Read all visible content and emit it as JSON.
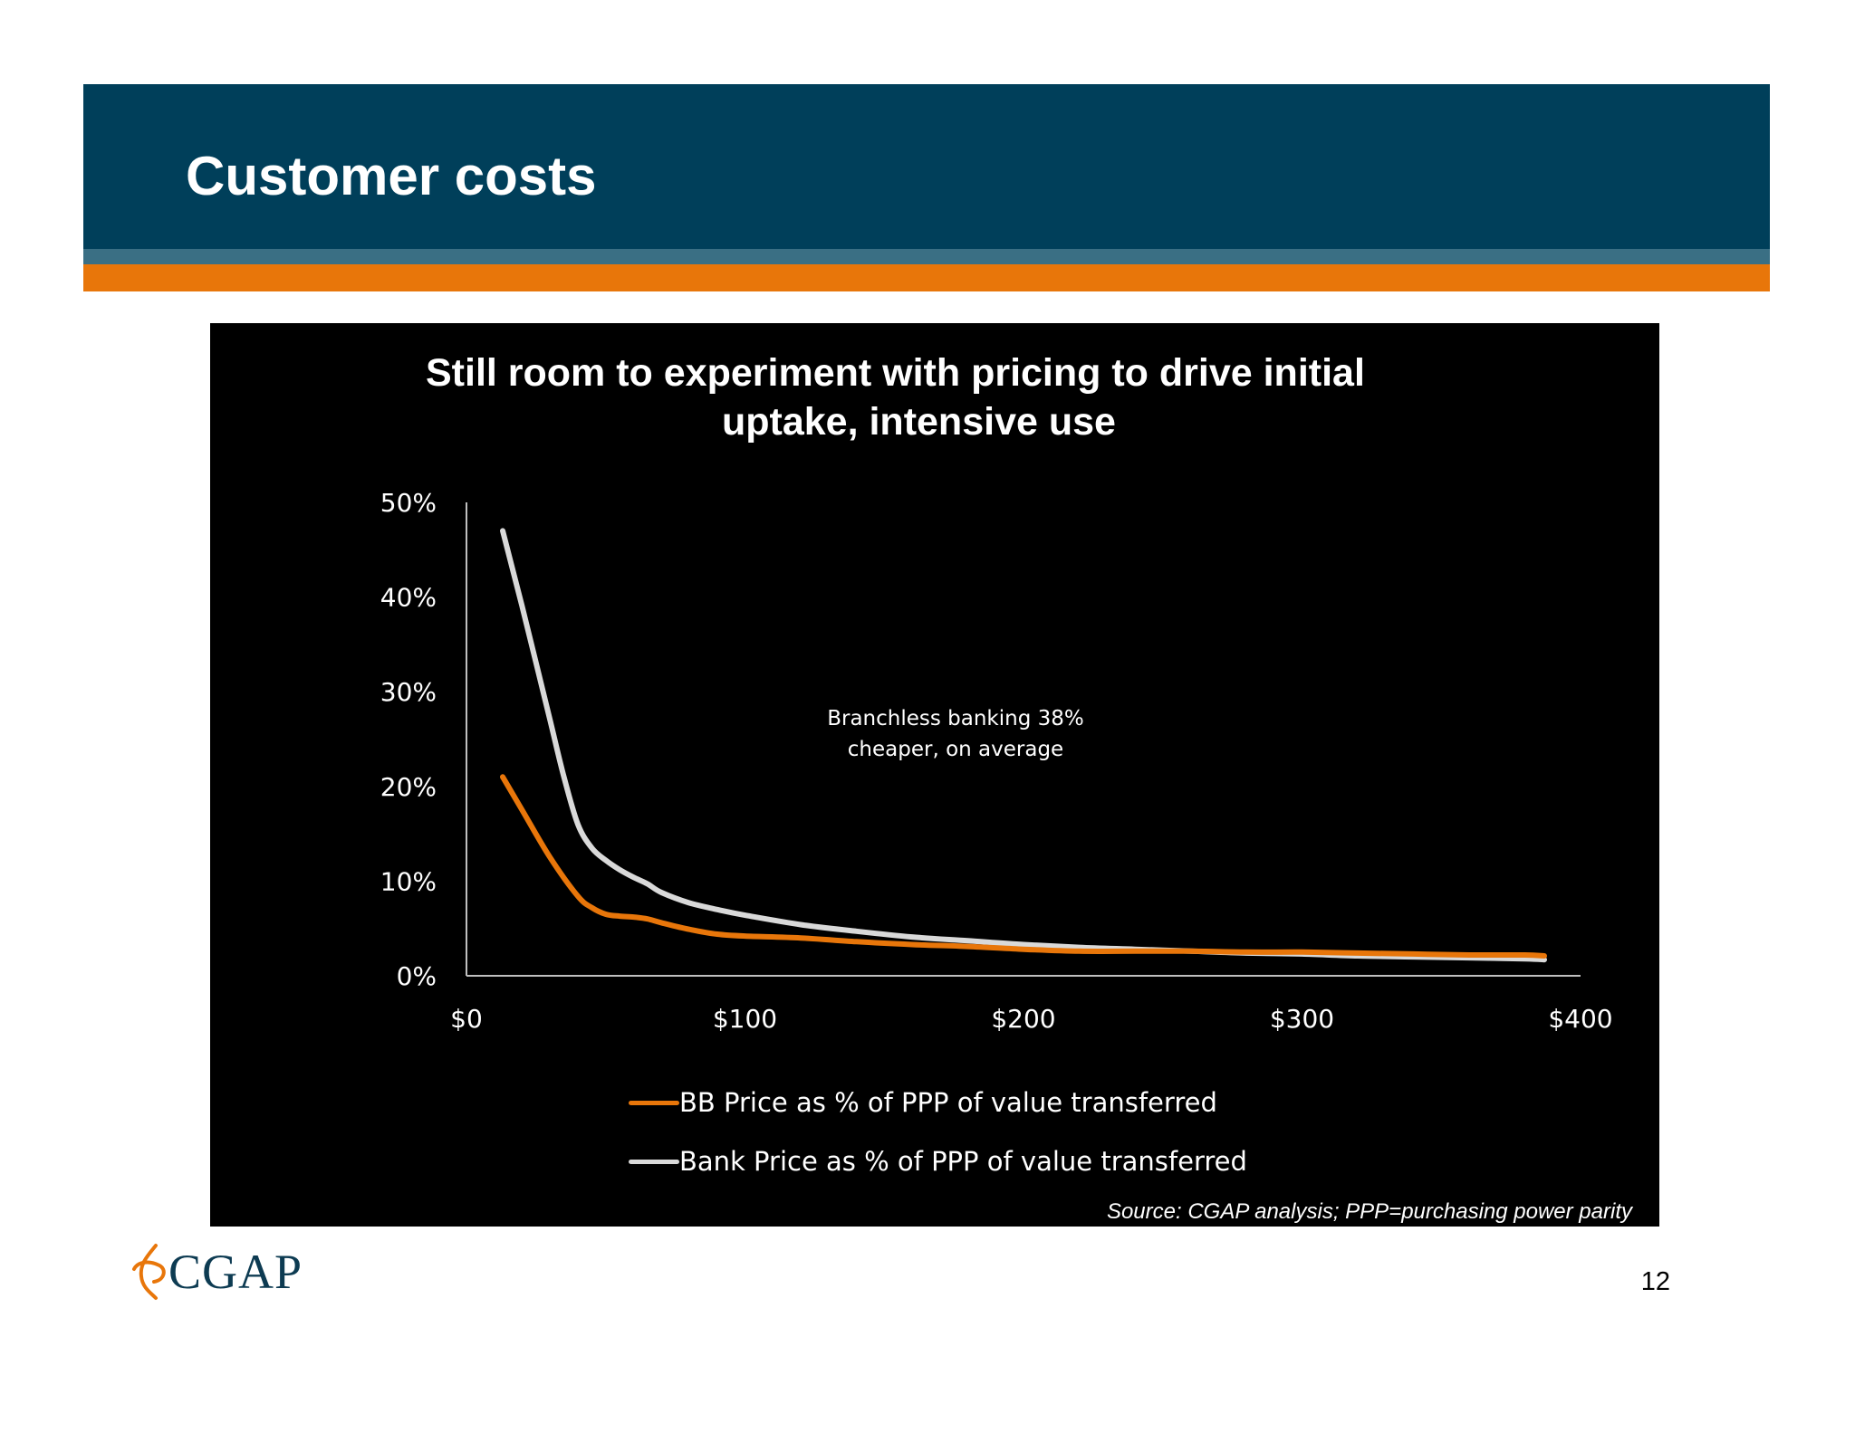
{
  "slide": {
    "title": "Customer costs",
    "page_number": "12",
    "logo_text": "CGAP",
    "source": "Source: CGAP analysis; PPP=purchasing power parity"
  },
  "colors": {
    "header_band": "#003f5a",
    "header_stripe": "#3a6f84",
    "header_orange": "#e8760a",
    "chart_background": "#000000",
    "bb_series": "#e8760a",
    "bank_series": "#d9d9d9"
  },
  "chart_data": {
    "type": "line",
    "title_lines": [
      "Still room to experiment with pricing to drive initial",
      "uptake, intensive use"
    ],
    "annotation_lines": [
      "Branchless banking 38%",
      "cheaper, on average"
    ],
    "xlim": [
      0,
      400
    ],
    "ylim": [
      0,
      50
    ],
    "x_ticks": [
      0,
      100,
      200,
      300,
      400
    ],
    "x_tick_labels": [
      "$0",
      "$100",
      "$200",
      "$300",
      "$400"
    ],
    "y_ticks": [
      0,
      10,
      20,
      30,
      40,
      50
    ],
    "y_tick_labels": [
      "0%",
      "10%",
      "20%",
      "30%",
      "40%",
      "50%"
    ],
    "grid": false,
    "legend_position": "bottom",
    "series": [
      {
        "name": "BB Price as % of PPP of value transferred",
        "color_key": "bb_series",
        "x": [
          13,
          20,
          30,
          40,
          45,
          50,
          55,
          60,
          65,
          70,
          80,
          90,
          100,
          120,
          140,
          160,
          180,
          200,
          220,
          240,
          260,
          280,
          300,
          320,
          340,
          360,
          380,
          387
        ],
        "y": [
          21,
          17.5,
          12.5,
          8.4,
          7.2,
          6.5,
          6.3,
          6.2,
          6.0,
          5.6,
          4.9,
          4.4,
          4.2,
          4.0,
          3.6,
          3.3,
          3.1,
          2.8,
          2.6,
          2.6,
          2.6,
          2.5,
          2.5,
          2.4,
          2.3,
          2.2,
          2.2,
          2.1
        ]
      },
      {
        "name": "Bank Price as % of PPP of value transferred",
        "color_key": "bank_series",
        "x": [
          13,
          20,
          30,
          35,
          40,
          45,
          50,
          55,
          60,
          65,
          70,
          80,
          90,
          100,
          120,
          140,
          160,
          180,
          200,
          220,
          240,
          260,
          280,
          300,
          320,
          340,
          360,
          380,
          387
        ],
        "y": [
          47,
          39,
          27,
          21,
          16,
          13.5,
          12.2,
          11.2,
          10.4,
          9.7,
          8.8,
          7.7,
          7.0,
          6.4,
          5.4,
          4.7,
          4.1,
          3.7,
          3.3,
          3.0,
          2.8,
          2.6,
          2.4,
          2.3,
          2.1,
          2.0,
          1.9,
          1.8,
          1.7
        ]
      }
    ]
  }
}
